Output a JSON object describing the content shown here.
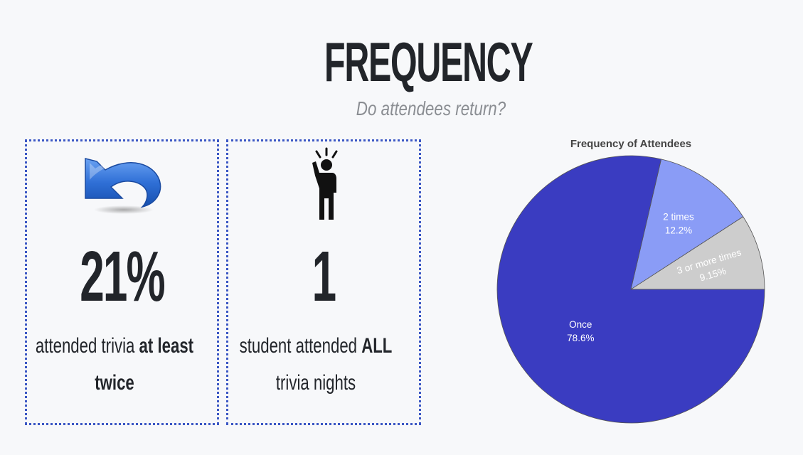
{
  "header": {
    "title": "FREQUENCY",
    "subtitle": "Do attendees return?"
  },
  "cards": [
    {
      "icon": "undo-arrow-icon",
      "value": "21%",
      "caption_plain": "attended trivia",
      "caption_bold": "at least twice"
    },
    {
      "icon": "person-idea-icon",
      "value": "1",
      "caption_plain": "student attended",
      "caption_bold": "ALL",
      "caption_tail": "trivia nights"
    }
  ],
  "colors": {
    "card_border": "#3b57c4",
    "once": "#3a3cc1",
    "two_times": "#8a9cf6",
    "three_plus": "#cdcdcd"
  },
  "chart_data": {
    "type": "pie",
    "title": "Frequency of Attendees",
    "slices": [
      {
        "label": "Once",
        "value": 78.6,
        "display": "78.6%",
        "color": "#3a3cc1",
        "label_color": "#ffffff"
      },
      {
        "label": "2 times",
        "value": 12.2,
        "display": "12.2%",
        "color": "#8a9cf6",
        "label_color": "#ffffff"
      },
      {
        "label": "3 or more times",
        "value": 9.15,
        "display": "9.15%",
        "color": "#cdcdcd",
        "label_color": "#ffffff"
      }
    ],
    "start_angle_deg": 90,
    "direction": "counterclockwise"
  }
}
